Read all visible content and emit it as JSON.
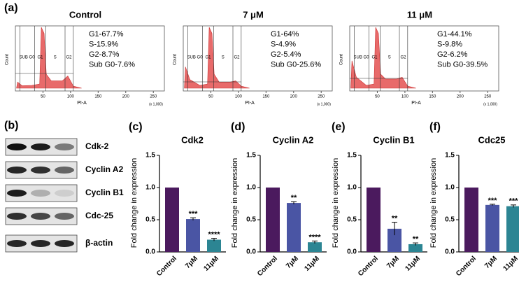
{
  "panels": [
    "(a)",
    "(b)",
    "(c)",
    "(d)",
    "(e)",
    "(f)"
  ],
  "flow": {
    "gates": [
      "SUB G0",
      "G1",
      "S",
      "G2"
    ],
    "ylabel": "Count",
    "xlabel": "PI-A",
    "xunit": "(x 1,000)",
    "xlim": [
      0,
      270
    ],
    "xticks": [
      50,
      100,
      150,
      200,
      250
    ],
    "plots": [
      {
        "title": "Control",
        "stats": [
          "G1-67.7%",
          "S-15.9%",
          "G2-8.7%",
          "Sub G0-7.6%"
        ]
      },
      {
        "title": "7 μM",
        "stats": [
          "G1-64%",
          "S-4.9%",
          "G2-5.4%",
          "Sub G0-25.6%"
        ]
      },
      {
        "title": "11 μM",
        "stats": [
          "G1-44.1%",
          "S-9.8%",
          "G2-6.2%",
          "Sub G0-39.5%"
        ]
      }
    ]
  },
  "blot": {
    "labels": [
      "Cdk-2",
      "Cyclin A2",
      "Cyclin B1",
      "Cdc-25",
      "β-actin"
    ]
  },
  "chart_data": [
    {
      "type": "bar",
      "title": "Cdk2",
      "ylabel": "Fold change in expression",
      "categories": [
        "Control",
        "7μM",
        "11μM"
      ],
      "values": [
        1,
        0.51,
        0.19
      ],
      "errors": [
        null,
        0.02,
        0.02
      ],
      "significance": [
        null,
        "***",
        "****"
      ],
      "colors": [
        "#4b1a5e",
        "#4a55a4",
        "#2c8593"
      ],
      "ylim": [
        0,
        1.5
      ],
      "yticks": [
        {
          "value": 0,
          "label": "0.0"
        },
        0.5,
        {
          "value": 1,
          "label": "1.0"
        },
        1.5
      ]
    },
    {
      "type": "bar",
      "title": "Cyclin A2",
      "ylabel": "Fold change in expression",
      "categories": [
        "Control",
        "7μM",
        "11μM"
      ],
      "values": [
        1,
        0.76,
        0.15
      ],
      "errors": [
        null,
        0.02,
        0.02
      ],
      "significance": [
        null,
        "**",
        "****"
      ],
      "colors": [
        "#4b1a5e",
        "#4a55a4",
        "#2c8593"
      ],
      "ylim": [
        0,
        1.5
      ],
      "yticks": [
        {
          "value": 0,
          "label": "0.0"
        },
        0.5,
        {
          "value": 1,
          "label": "1.0"
        },
        1.5
      ]
    },
    {
      "type": "bar",
      "title": "Cyclin B1",
      "ylabel": "Fold change in expression",
      "categories": [
        "Control",
        "7μM",
        "11μM"
      ],
      "values": [
        1,
        0.36,
        0.12
      ],
      "errors": [
        null,
        0.1,
        0.02
      ],
      "significance": [
        null,
        "**",
        "**"
      ],
      "colors": [
        "#4b1a5e",
        "#4a55a4",
        "#2c8593"
      ],
      "ylim": [
        0,
        1.5
      ],
      "yticks": [
        {
          "value": 0,
          "label": "0.0"
        },
        0.5,
        {
          "value": 1,
          "label": "1.0"
        },
        1.5
      ]
    },
    {
      "type": "bar",
      "title": "Cdc25",
      "ylabel": "Fold change in expression",
      "categories": [
        "Control",
        "7μM",
        "11μM"
      ],
      "values": [
        1,
        0.73,
        0.71
      ],
      "errors": [
        null,
        0.01,
        0.02
      ],
      "significance": [
        null,
        "***",
        "***"
      ],
      "colors": [
        "#4b1a5e",
        "#4a55a4",
        "#2c8593"
      ],
      "ylim": [
        0,
        1.5
      ],
      "yticks": [
        {
          "value": 0,
          "label": "0.0"
        },
        0.5,
        {
          "value": 1,
          "label": "1.0"
        },
        1.5
      ]
    }
  ]
}
